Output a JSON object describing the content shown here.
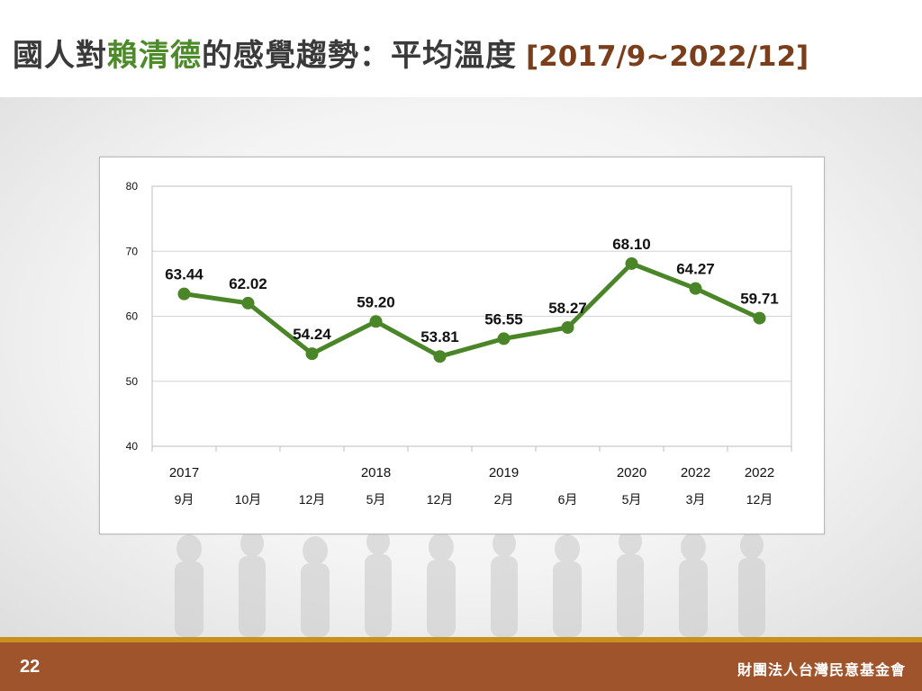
{
  "header": {
    "title_pre": "國人對",
    "title_highlight": "賴清德",
    "title_post": "的感覺趨勢：平均溫度",
    "date_range": "[2017/9~2022/12]"
  },
  "colors": {
    "line": "#4a8528",
    "highlight": "#4d8a2a",
    "range": "#7a3e1c",
    "footer": "#a0542c",
    "footer_stripe": "#c8901c"
  },
  "chart_data": {
    "type": "line",
    "categories": [
      [
        "2017",
        "9月"
      ],
      [
        "",
        "10月"
      ],
      [
        "",
        "12月"
      ],
      [
        "2018",
        "5月"
      ],
      [
        "",
        "12月"
      ],
      [
        "2019",
        "2月"
      ],
      [
        "",
        "6月"
      ],
      [
        "2020",
        "5月"
      ],
      [
        "2022",
        "3月"
      ],
      [
        "2022",
        "12月"
      ]
    ],
    "series": [
      {
        "values": [
          63.44,
          62.02,
          54.24,
          59.2,
          53.81,
          56.55,
          58.27,
          68.1,
          64.27,
          59.71
        ]
      }
    ],
    "labels": [
      "63.44",
      "62.02",
      "54.24",
      "59.20",
      "53.81",
      "56.55",
      "58.27",
      "68.10",
      "64.27",
      "59.71"
    ],
    "ylim": [
      40,
      80
    ],
    "yticks": [
      "40",
      "50",
      "60",
      "70",
      "80"
    ],
    "grid": true,
    "legend": "none"
  },
  "footer": {
    "page_number": "22",
    "organization": "財團法人台灣民意基金會"
  }
}
